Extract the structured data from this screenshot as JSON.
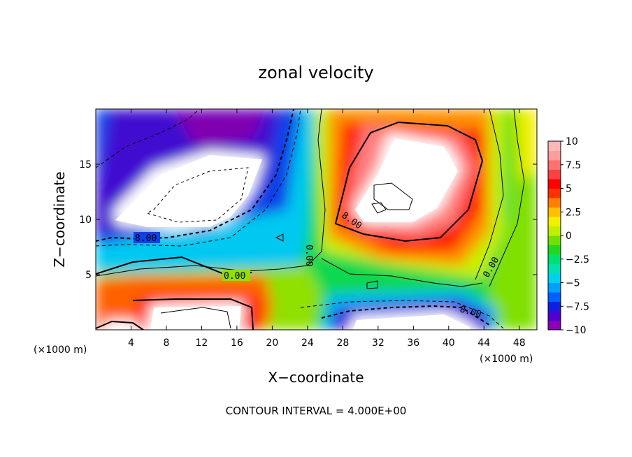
{
  "chart_data": {
    "type": "heatmap",
    "title": "zonal velocity",
    "xlabel": "X−coordinate",
    "ylabel": "Z−coordinate",
    "x_unit_label": "(×1000 m)",
    "x_unit_label_right": "(×1000 m)",
    "footer": "CONTOUR INTERVAL = 4.000E+00",
    "xlim": [
      0,
      50
    ],
    "ylim": [
      0,
      20
    ],
    "xticks": [
      4,
      8,
      12,
      16,
      20,
      24,
      28,
      32,
      36,
      40,
      44,
      48
    ],
    "xtick_labels": [
      "4",
      "8",
      "12",
      "16",
      "20",
      "24",
      "28",
      "32",
      "36",
      "40",
      "44",
      "48"
    ],
    "yticks": [
      5,
      10,
      15
    ],
    "ytick_labels": [
      "5",
      "10",
      "15"
    ],
    "colorbar": {
      "range": [
        -10,
        10
      ],
      "ticks": [
        10,
        7.5,
        5,
        2.5,
        0,
        -2.5,
        -5,
        -7.5,
        -10
      ],
      "tick_labels": [
        "10",
        "7.5",
        "5",
        "2.5",
        "0",
        "−2.5",
        "−5",
        "−7.5",
        "−10"
      ],
      "colors": [
        "#8a00b8",
        "#5000d0",
        "#1020e0",
        "#0060ff",
        "#00a0ff",
        "#00d0f0",
        "#00e0b0",
        "#00e070",
        "#20d820",
        "#70e000",
        "#c0f000",
        "#f0f000",
        "#ffc000",
        "#ff8000",
        "#ff3000",
        "#ff0000",
        "#ff4040",
        "#ff7070",
        "#ff9c9c",
        "#ffb8b8"
      ]
    },
    "contour_labels": [
      {
        "text": "8.00",
        "x": 7,
        "z": 8.1
      },
      {
        "text": "0.00",
        "x": 15,
        "z": 4.7
      },
      {
        "text": "0.00",
        "x": 23.9,
        "z": 6.5
      },
      {
        "text": "8.00",
        "x": 28.5,
        "z": 9.5
      },
      {
        "text": "0.00",
        "x": 45.5,
        "z": 6.2
      },
      {
        "text": "8.00",
        "x": 41.8,
        "z": 1.7
      }
    ],
    "field_features": [
      {
        "name": "upper-left jet core",
        "x": [
          2,
          20
        ],
        "z": [
          9,
          18
        ],
        "value_min": -10
      },
      {
        "name": "upper-right jet core",
        "x": [
          26,
          45
        ],
        "z": [
          8,
          19
        ],
        "value_max": 10
      },
      {
        "name": "lower-left jet core",
        "x": [
          4,
          19
        ],
        "z": [
          0,
          3
        ],
        "value_max": 10
      },
      {
        "name": "lower-right jet core",
        "x": [
          26,
          46
        ],
        "z": [
          0,
          2.5
        ],
        "value_min": -10
      }
    ]
  }
}
